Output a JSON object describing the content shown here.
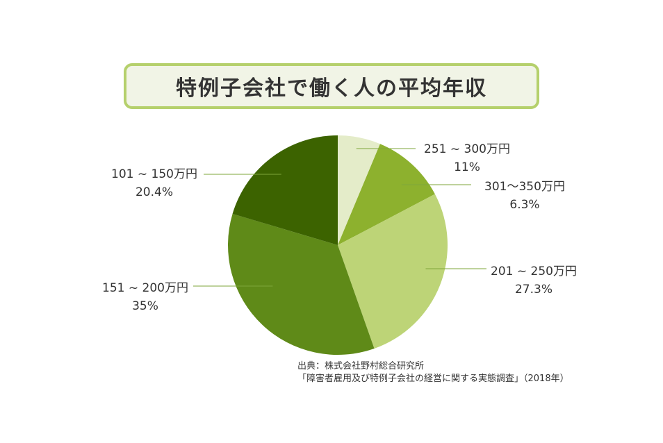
{
  "title": "特例子会社で働く人の平均年収",
  "chart_data": {
    "type": "pie",
    "slices": [
      {
        "label": "301〜350万円",
        "value_label": "6.3%",
        "value": 6.3,
        "color": "#e4ecc9"
      },
      {
        "label": "251 ~ 300万円",
        "value_label": "11%",
        "value": 11,
        "color": "#8db12e"
      },
      {
        "label": "201 ~ 250万円",
        "value_label": "27.3%",
        "value": 27.3,
        "color": "#bdd477"
      },
      {
        "label": "151 ~ 200万円",
        "value_label": "35%",
        "value": 35,
        "color": "#5f8a18"
      },
      {
        "label": "101 ~ 150万円",
        "value_label": "20.4%",
        "value": 20.4,
        "color": "#3c6300"
      }
    ]
  },
  "source": {
    "line1": "出典：株式会社野村総合研究所",
    "line2": "「障害者雇用及び特例子会社の経営に関する実態調査」（2018年）"
  }
}
